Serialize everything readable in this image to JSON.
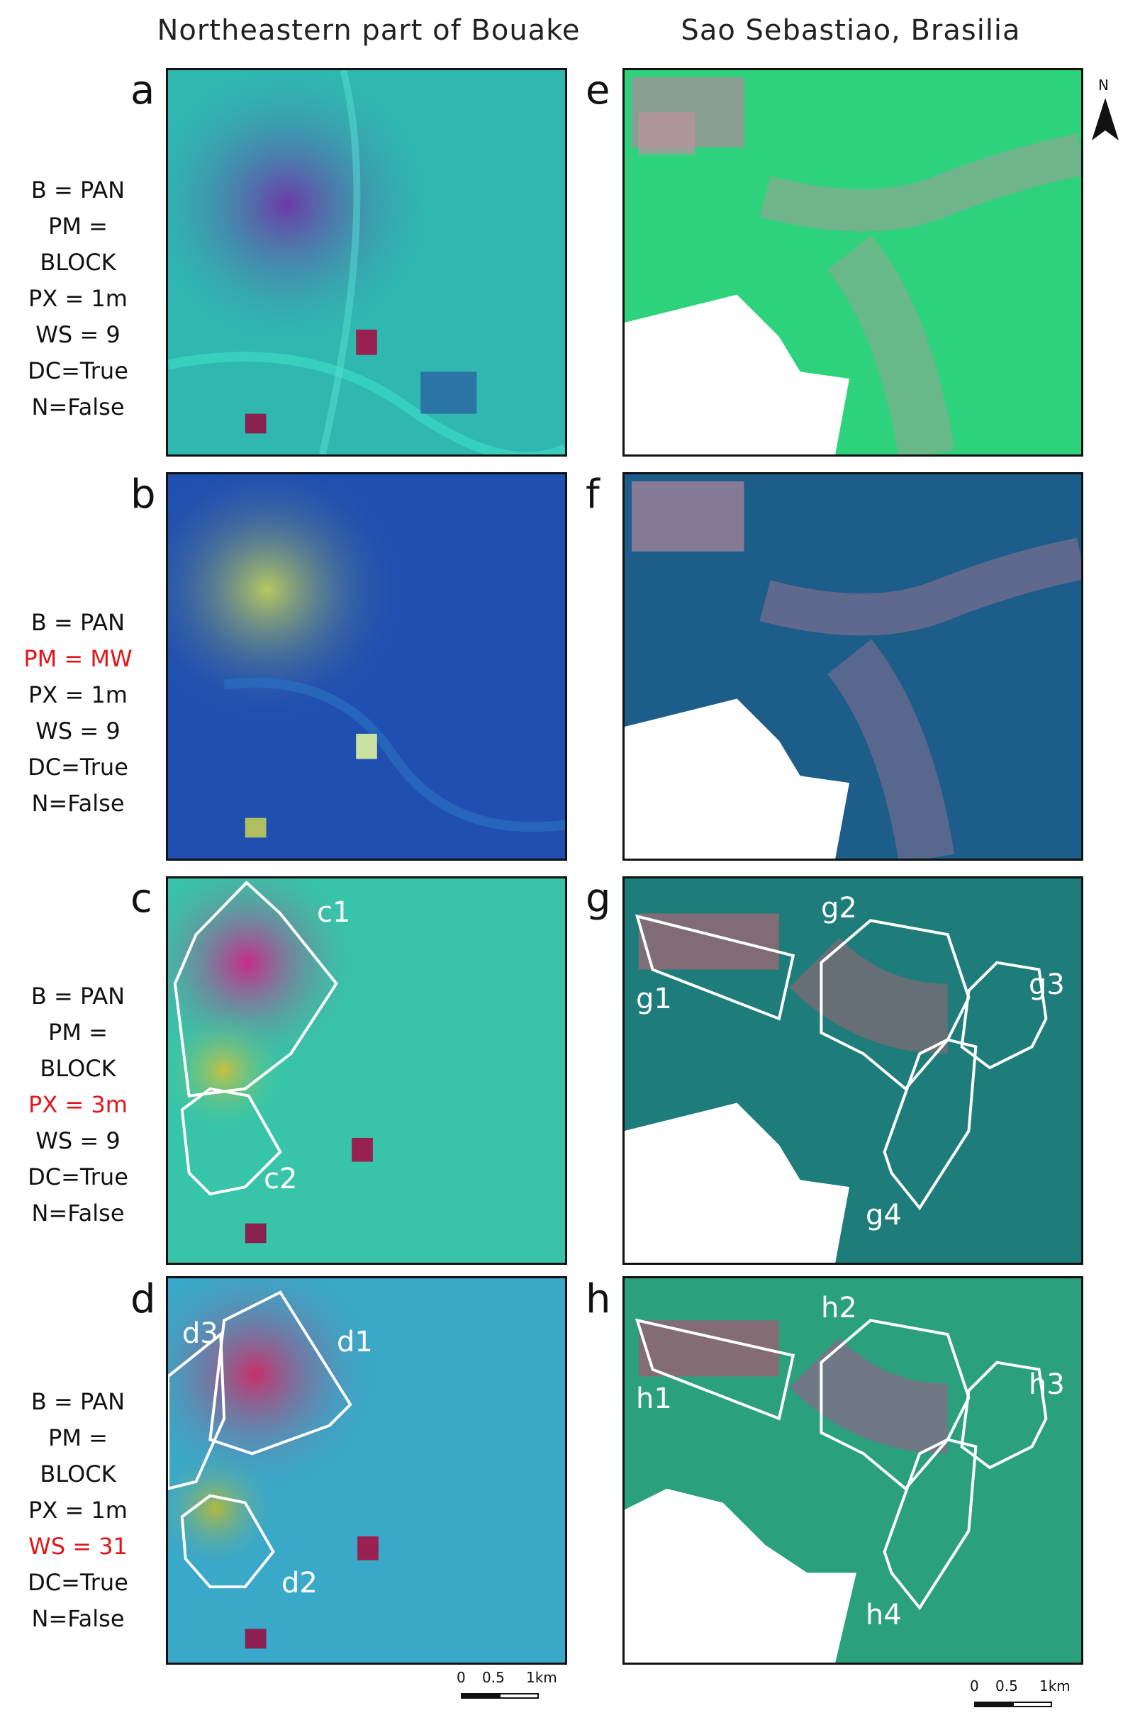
{
  "titles": {
    "left": "Northeastern part of Bouake",
    "right": "Sao Sebastiao, Brasilia"
  },
  "panels": {
    "a": "a",
    "b": "b",
    "c": "c",
    "d": "d",
    "e": "e",
    "f": "f",
    "g": "g",
    "h": "h"
  },
  "params": {
    "a": [
      "B = PAN",
      "PM =",
      "BLOCK",
      "PX = 1m",
      "WS = 9",
      "DC=True",
      "N=False"
    ],
    "b": [
      "B = PAN",
      "PM = MW",
      "PX = 1m",
      "WS = 9",
      "DC=True",
      "N=False"
    ],
    "c": [
      "B = PAN",
      "PM =",
      "BLOCK",
      "PX = 3m",
      "WS = 9",
      "DC=True",
      "N=False"
    ],
    "d": [
      "B = PAN",
      "PM =",
      "BLOCK",
      "PX = 1m",
      "WS = 31",
      "DC=True",
      "N=False"
    ]
  },
  "highlight_color": "#e0161b",
  "regions": {
    "c": [
      "c1",
      "c2"
    ],
    "d": [
      "d1",
      "d2",
      "d3"
    ],
    "g": [
      "g1",
      "g2",
      "g3",
      "g4"
    ],
    "h": [
      "h1",
      "h2",
      "h3",
      "h4"
    ]
  },
  "north_arrow": {
    "label": "N",
    "icon": "north-arrow-icon"
  },
  "scale": {
    "left": {
      "t0": "0",
      "t1": "0.5",
      "t2": "1km"
    },
    "right": {
      "t0": "0",
      "t1": "0.5",
      "t2": "1km"
    }
  },
  "colors": {
    "bouake_a": "#2fb8b0",
    "bouake_b": "#1f4fb0",
    "bouake_c": "#38c4a8",
    "bouake_d": "#3aa8c8",
    "brasilia_e": "#2ed27c",
    "brasilia_f": "#1d5d8a",
    "brasilia_g": "#1e7d7a",
    "brasilia_h": "#2aa07c"
  }
}
